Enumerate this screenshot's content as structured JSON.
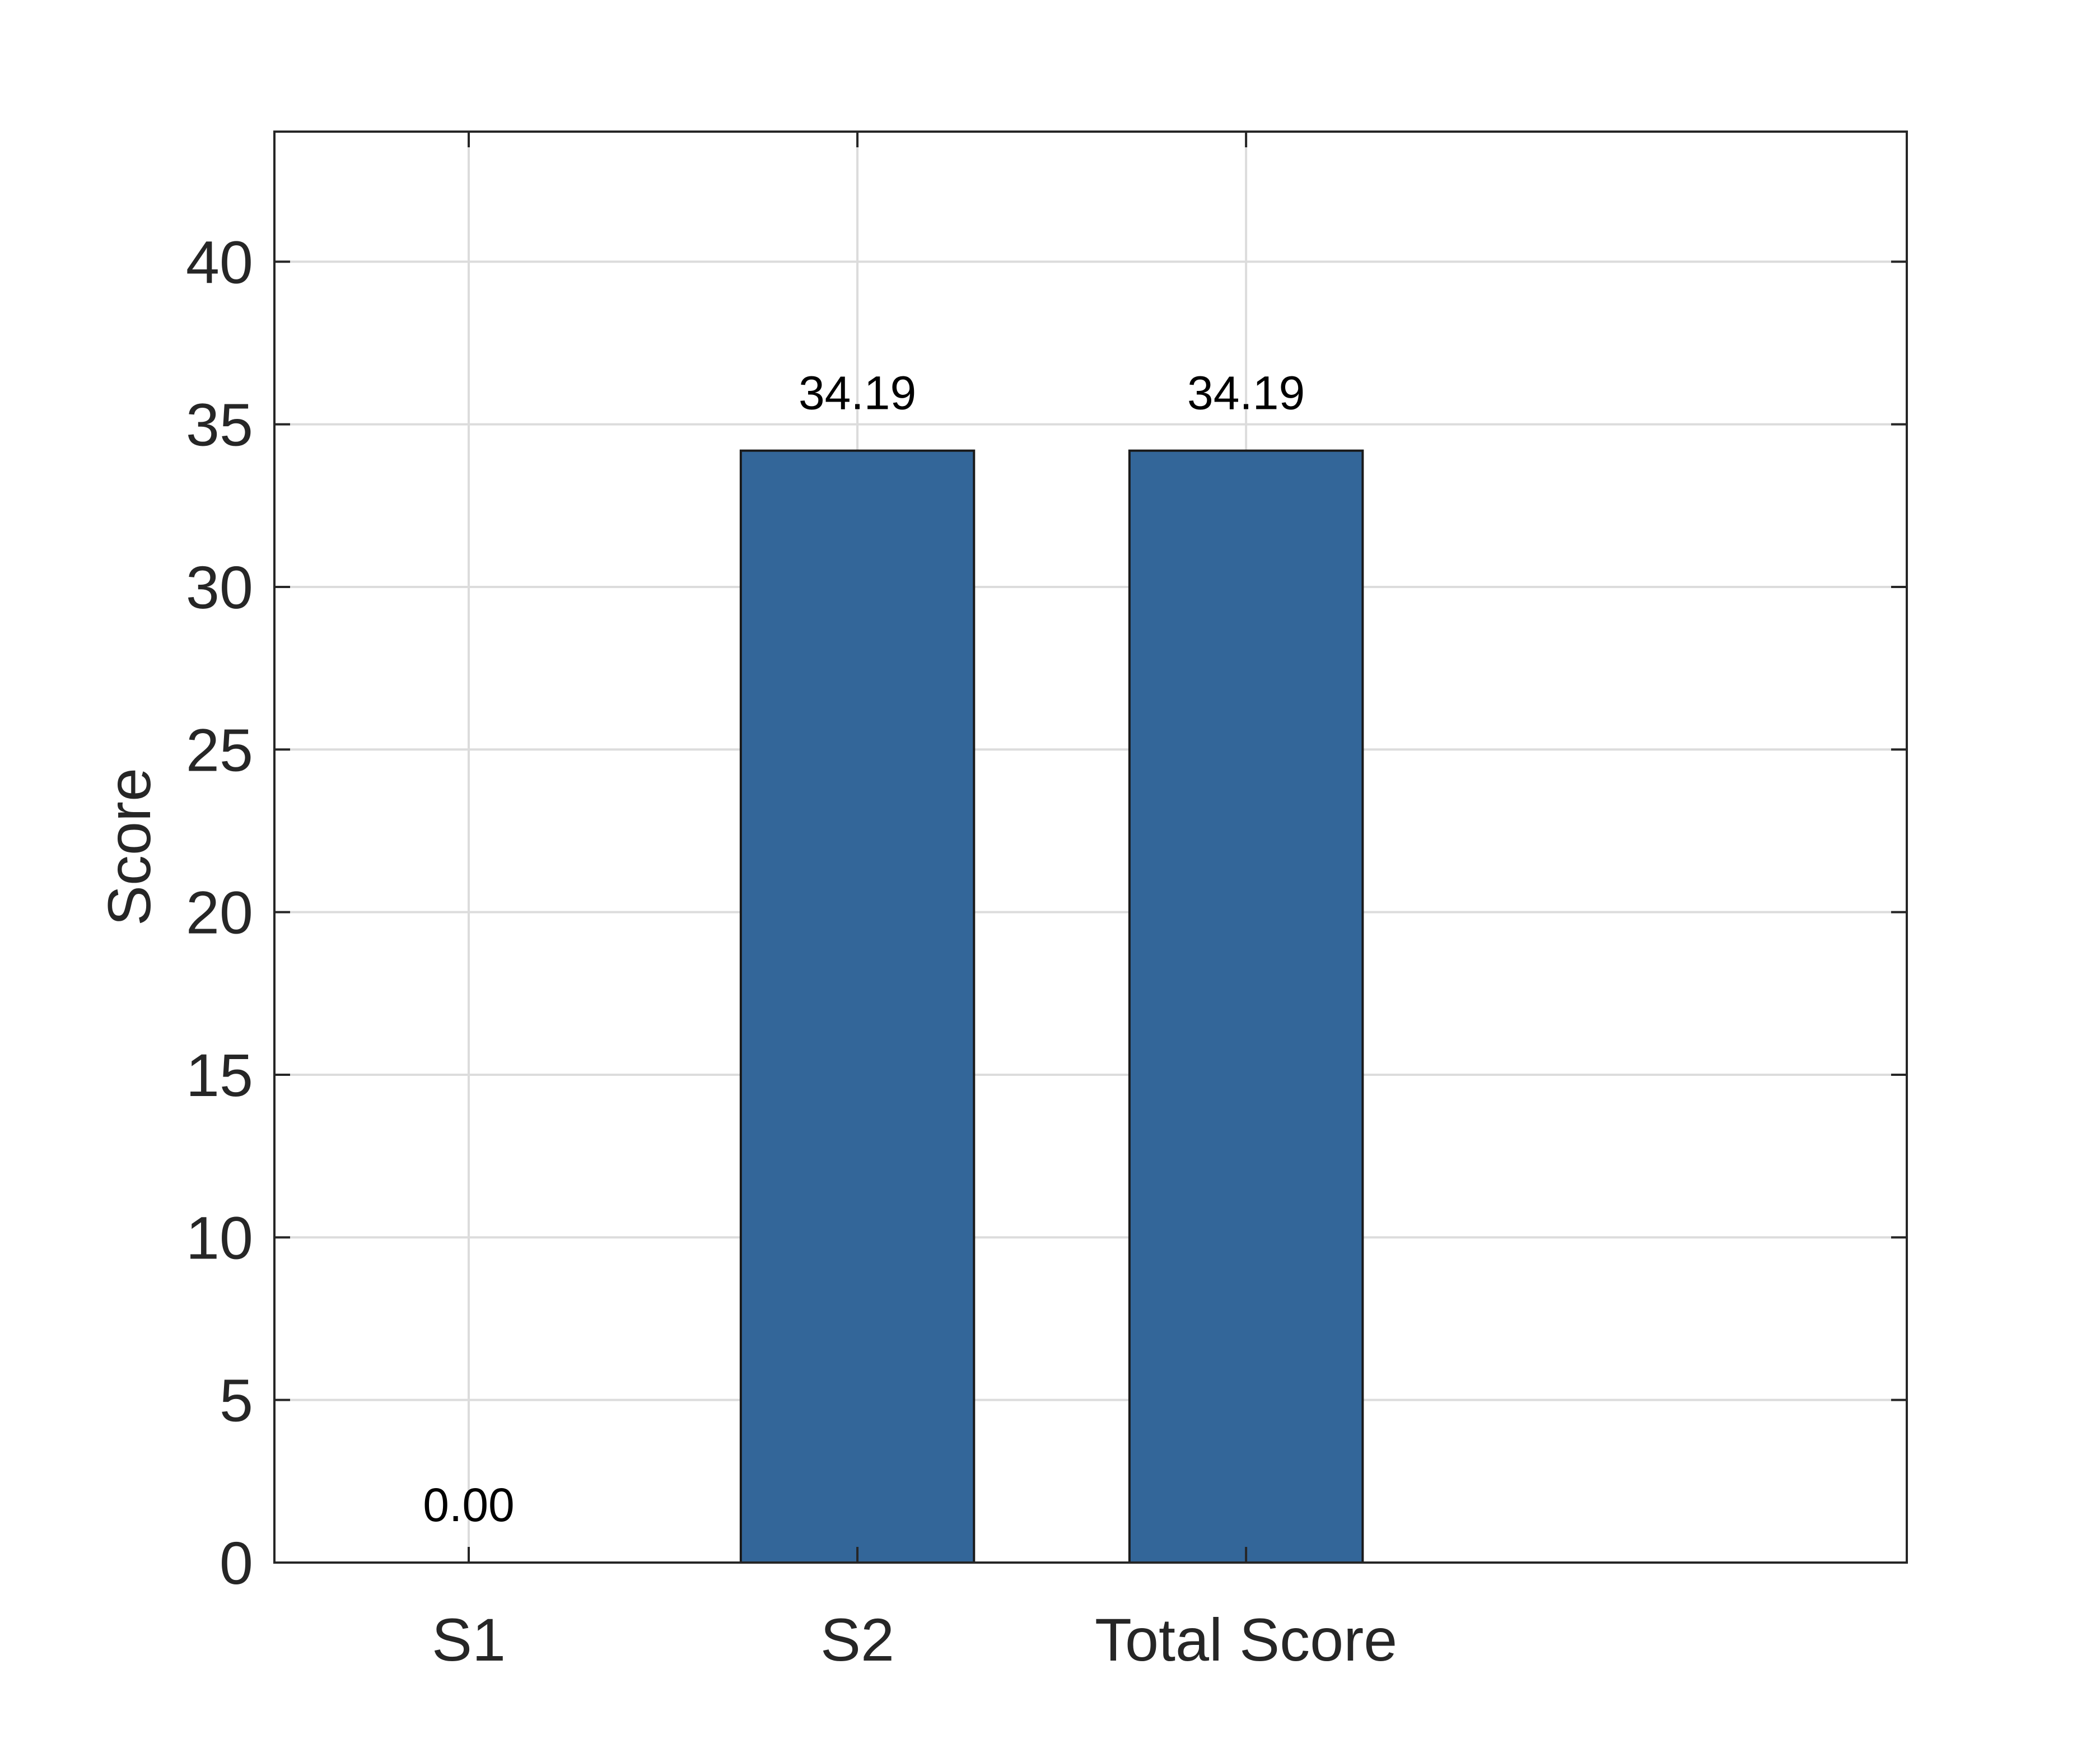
{
  "chart_data": {
    "type": "bar",
    "categories": [
      "S1",
      "S2",
      "Total Score"
    ],
    "values": [
      0.0,
      34.19,
      34.19
    ],
    "data_labels": [
      "0.00",
      "34.19",
      "34.19"
    ],
    "title": "",
    "xlabel": "",
    "ylabel": "Score",
    "ylim": [
      0,
      44
    ],
    "xlim": [
      0.5,
      4.7
    ],
    "yticks": [
      0,
      5,
      10,
      15,
      20,
      25,
      30,
      35,
      40
    ],
    "ytick_labels": [
      "0",
      "5",
      "10",
      "15",
      "20",
      "25",
      "30",
      "35",
      "40"
    ],
    "grid": true,
    "legend": "none",
    "bar_color": "#336699"
  }
}
